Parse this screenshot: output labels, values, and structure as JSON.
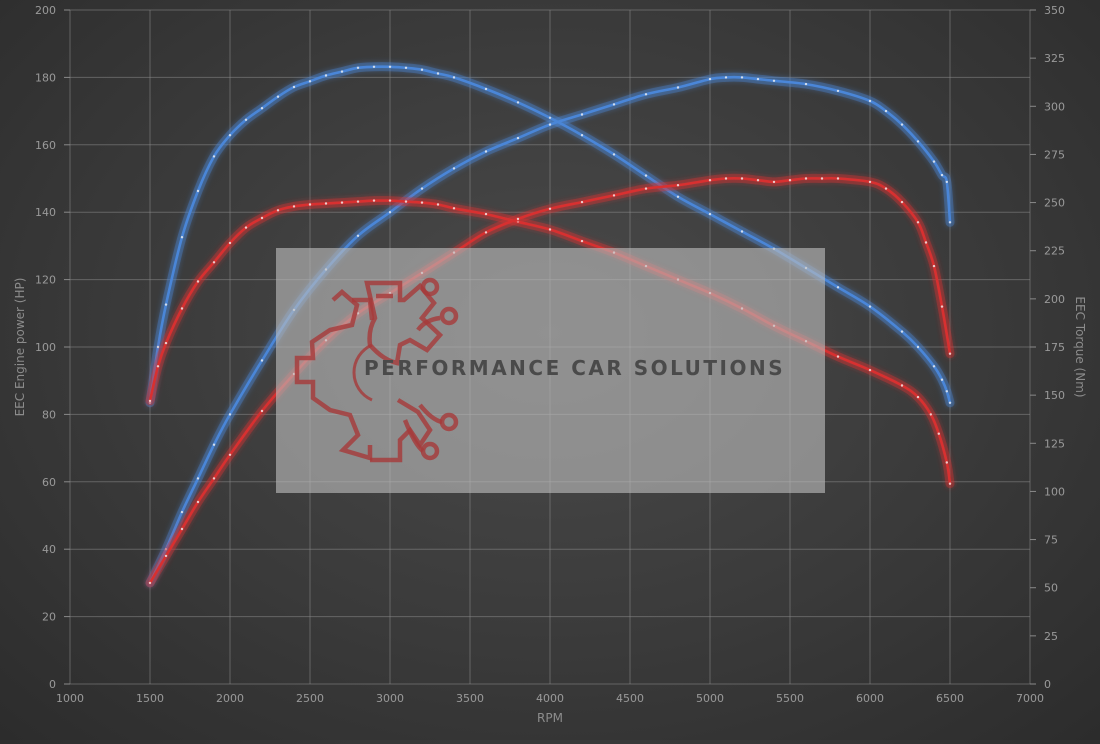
{
  "chart_data": {
    "type": "line",
    "xlabel": "RPM",
    "ylabel": "EEC Engine power (HP)",
    "y2label": "EEC Torque (Nm)",
    "xlim": [
      1000,
      7000
    ],
    "ylim": [
      0,
      200
    ],
    "y2lim": [
      0,
      350
    ],
    "x_ticks": [
      1000,
      1500,
      2000,
      2500,
      3000,
      3500,
      4000,
      4500,
      5000,
      5500,
      6000,
      6500,
      7000
    ],
    "y_ticks": [
      0,
      20,
      40,
      60,
      80,
      100,
      120,
      140,
      160,
      180,
      200
    ],
    "y2_ticks": [
      0,
      25,
      50,
      75,
      100,
      125,
      150,
      175,
      200,
      225,
      250,
      275,
      300,
      325,
      350
    ],
    "grid": true,
    "watermark": "PERFORMANCE CAR SOLUTIONS",
    "colors": {
      "tuned": "#4a86d8",
      "stock": "#d83030",
      "background": "#3a3a3a"
    },
    "series": [
      {
        "axis": "y2",
        "color": "#4a86d8",
        "x": [
          1500,
          1550,
          1600,
          1700,
          1800,
          1900,
          2000,
          2100,
          2200,
          2300,
          2400,
          2500,
          2600,
          2700,
          2800,
          2900,
          3000,
          3100,
          3200,
          3300,
          3400,
          3600,
          3800,
          4000,
          4200,
          4400,
          4600,
          4800,
          5000,
          5200,
          5400,
          5600,
          5800,
          6000,
          6200,
          6300,
          6400,
          6450,
          6480,
          6500
        ],
        "values": [
          146,
          175,
          197,
          232,
          256,
          274,
          285,
          293,
          299,
          305,
          310,
          313,
          316,
          318,
          320,
          320.5,
          320.5,
          320,
          319,
          317,
          315,
          309,
          302,
          294,
          285,
          275,
          264,
          253,
          244,
          235,
          226,
          216,
          206,
          196,
          183,
          175,
          165,
          158,
          152,
          146
        ]
      },
      {
        "axis": "y",
        "color": "#4a86d8",
        "x": [
          1500,
          1600,
          1700,
          1800,
          1900,
          2000,
          2200,
          2400,
          2600,
          2800,
          3000,
          3200,
          3400,
          3600,
          3800,
          4000,
          4200,
          4400,
          4600,
          4800,
          5000,
          5100,
          5200,
          5300,
          5400,
          5600,
          5800,
          6000,
          6100,
          6200,
          6300,
          6400,
          6450,
          6480,
          6500
        ],
        "values": [
          30,
          40,
          51,
          61,
          71,
          80,
          96,
          111,
          123,
          133,
          140,
          147,
          153,
          158,
          162,
          166,
          169,
          172,
          175,
          177,
          179.5,
          180,
          180,
          179.5,
          179,
          178,
          176,
          173,
          170,
          166,
          161,
          155,
          151,
          149,
          137
        ]
      },
      {
        "axis": "y2",
        "color": "#d83030",
        "x": [
          1500,
          1550,
          1600,
          1700,
          1800,
          1900,
          2000,
          2100,
          2200,
          2300,
          2400,
          2500,
          2600,
          2700,
          2800,
          2900,
          3000,
          3100,
          3200,
          3300,
          3400,
          3600,
          3800,
          4000,
          4200,
          4400,
          4600,
          4800,
          5000,
          5200,
          5400,
          5600,
          5800,
          6000,
          6200,
          6300,
          6380,
          6430,
          6480,
          6500
        ],
        "values": [
          147,
          165,
          177,
          195,
          209,
          219,
          229,
          237,
          242,
          246,
          248,
          249,
          249.5,
          250,
          250.5,
          251,
          251,
          250.5,
          250,
          249,
          247,
          244,
          240,
          236,
          230,
          224,
          217,
          210,
          203,
          195,
          186,
          178,
          170,
          163,
          155,
          149,
          140,
          130,
          115,
          104
        ]
      },
      {
        "axis": "y",
        "color": "#d83030",
        "x": [
          1500,
          1600,
          1700,
          1800,
          1900,
          2000,
          2200,
          2400,
          2600,
          2800,
          3000,
          3200,
          3400,
          3600,
          3800,
          4000,
          4200,
          4400,
          4600,
          4800,
          5000,
          5100,
          5200,
          5300,
          5400,
          5500,
          5600,
          5700,
          5800,
          6000,
          6100,
          6200,
          6300,
          6350,
          6400,
          6450,
          6500
        ],
        "values": [
          30,
          38,
          46,
          54,
          61,
          68,
          81,
          92,
          102,
          110,
          116,
          122,
          128,
          134,
          138,
          141,
          143,
          145,
          147,
          148,
          149.5,
          150,
          150,
          149.5,
          149,
          149.5,
          150,
          150,
          150,
          149,
          147,
          143,
          137,
          131,
          124,
          112,
          98
        ]
      }
    ]
  }
}
